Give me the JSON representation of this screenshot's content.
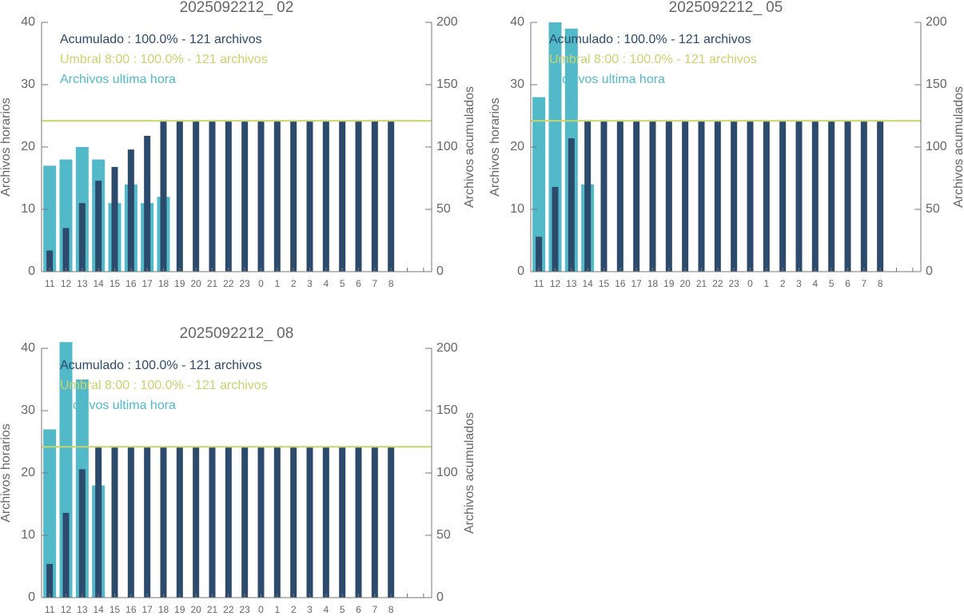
{
  "chart_data": [
    {
      "type": "bar",
      "title": "2025092212_ 02",
      "categories": [
        "11",
        "12",
        "13",
        "14",
        "15",
        "16",
        "17",
        "18",
        "19",
        "20",
        "21",
        "22",
        "23",
        "0",
        "1",
        "2",
        "3",
        "4",
        "5",
        "6",
        "7",
        "8",
        null,
        null
      ],
      "series": [
        {
          "name": "Acumulado : 100.0% - 121 archivos",
          "color": "#2c4a6b",
          "axis": "y2",
          "values": [
            17,
            35,
            55,
            73,
            84,
            98,
            109,
            121,
            121,
            121,
            121,
            121,
            121,
            121,
            121,
            121,
            121,
            121,
            121,
            121,
            121,
            121,
            null,
            null
          ]
        },
        {
          "name": "Archivos ultima hora",
          "color": "#52b9c9",
          "values": [
            17,
            18,
            20,
            18,
            11,
            14,
            11,
            12,
            0,
            0,
            0,
            0,
            0,
            0,
            0,
            0,
            0,
            0,
            0,
            0,
            0,
            0,
            null,
            null
          ]
        }
      ],
      "threshold": {
        "name": "Umbral 8:00 : 100.0% - 121 archivos",
        "value": 121,
        "color": "#c9d46c",
        "axis": "y2"
      },
      "ylabel": "Archivos horarios",
      "y2label": "Archivos acumulados",
      "ylim": [
        0,
        40
      ],
      "yticks": [
        0,
        10,
        20,
        30,
        40
      ],
      "y2lim": [
        0,
        200
      ],
      "y2ticks": [
        0,
        50,
        100,
        150,
        200
      ]
    },
    {
      "type": "bar",
      "title": "2025092212_ 05",
      "categories": [
        "11",
        "12",
        "13",
        "14",
        "15",
        "16",
        "17",
        "18",
        "19",
        "20",
        "21",
        "22",
        "23",
        "0",
        "1",
        "2",
        "3",
        "4",
        "5",
        "6",
        "7",
        "8",
        null,
        null
      ],
      "series": [
        {
          "name": "Acumulado : 100.0% - 121 archivos",
          "color": "#2c4a6b",
          "axis": "y2",
          "values": [
            28,
            68,
            107,
            121,
            121,
            121,
            121,
            121,
            121,
            121,
            121,
            121,
            121,
            121,
            121,
            121,
            121,
            121,
            121,
            121,
            121,
            121,
            null,
            null
          ]
        },
        {
          "name": "Archivos ultima hora",
          "color": "#52b9c9",
          "values": [
            28,
            40,
            39,
            14,
            0,
            0,
            0,
            0,
            0,
            0,
            0,
            0,
            0,
            0,
            0,
            0,
            0,
            0,
            0,
            0,
            0,
            0,
            null,
            null
          ]
        }
      ],
      "threshold": {
        "name": "Umbral 8:00 : 100.0% - 121 archivos",
        "value": 121,
        "color": "#c9d46c",
        "axis": "y2"
      },
      "ylabel": "Archivos horarios",
      "y2label": "Archivos acumulados",
      "ylim": [
        0,
        40
      ],
      "yticks": [
        0,
        10,
        20,
        30,
        40
      ],
      "y2lim": [
        0,
        200
      ],
      "y2ticks": [
        0,
        50,
        100,
        150,
        200
      ]
    },
    {
      "type": "bar",
      "title": "2025092212_ 08",
      "categories": [
        "11",
        "12",
        "13",
        "14",
        "15",
        "16",
        "17",
        "18",
        "19",
        "20",
        "21",
        "22",
        "23",
        "0",
        "1",
        "2",
        "3",
        "4",
        "5",
        "6",
        "7",
        "8",
        null,
        null
      ],
      "series": [
        {
          "name": "Acumulado : 100.0% - 121 archivos",
          "color": "#2c4a6b",
          "axis": "y2",
          "values": [
            27,
            68,
            103,
            121,
            121,
            121,
            121,
            121,
            121,
            121,
            121,
            121,
            121,
            121,
            121,
            121,
            121,
            121,
            121,
            121,
            121,
            121,
            null,
            null
          ]
        },
        {
          "name": "Archivos ultima hora",
          "color": "#52b9c9",
          "values": [
            27,
            41,
            35,
            18,
            0,
            0,
            0,
            0,
            0,
            0,
            0,
            0,
            0,
            0,
            0,
            0,
            0,
            0,
            0,
            0,
            0,
            0,
            null,
            null
          ]
        }
      ],
      "threshold": {
        "name": "Umbral 8:00 : 100.0% - 121 archivos",
        "value": 121,
        "color": "#c9d46c",
        "axis": "y2"
      },
      "ylabel": "Archivos horarios",
      "y2label": "Archivos acumulados",
      "ylim": [
        0,
        40
      ],
      "yticks": [
        0,
        10,
        20,
        30,
        40
      ],
      "y2lim": [
        0,
        200
      ],
      "y2ticks": [
        0,
        50,
        100,
        150,
        200
      ]
    }
  ]
}
